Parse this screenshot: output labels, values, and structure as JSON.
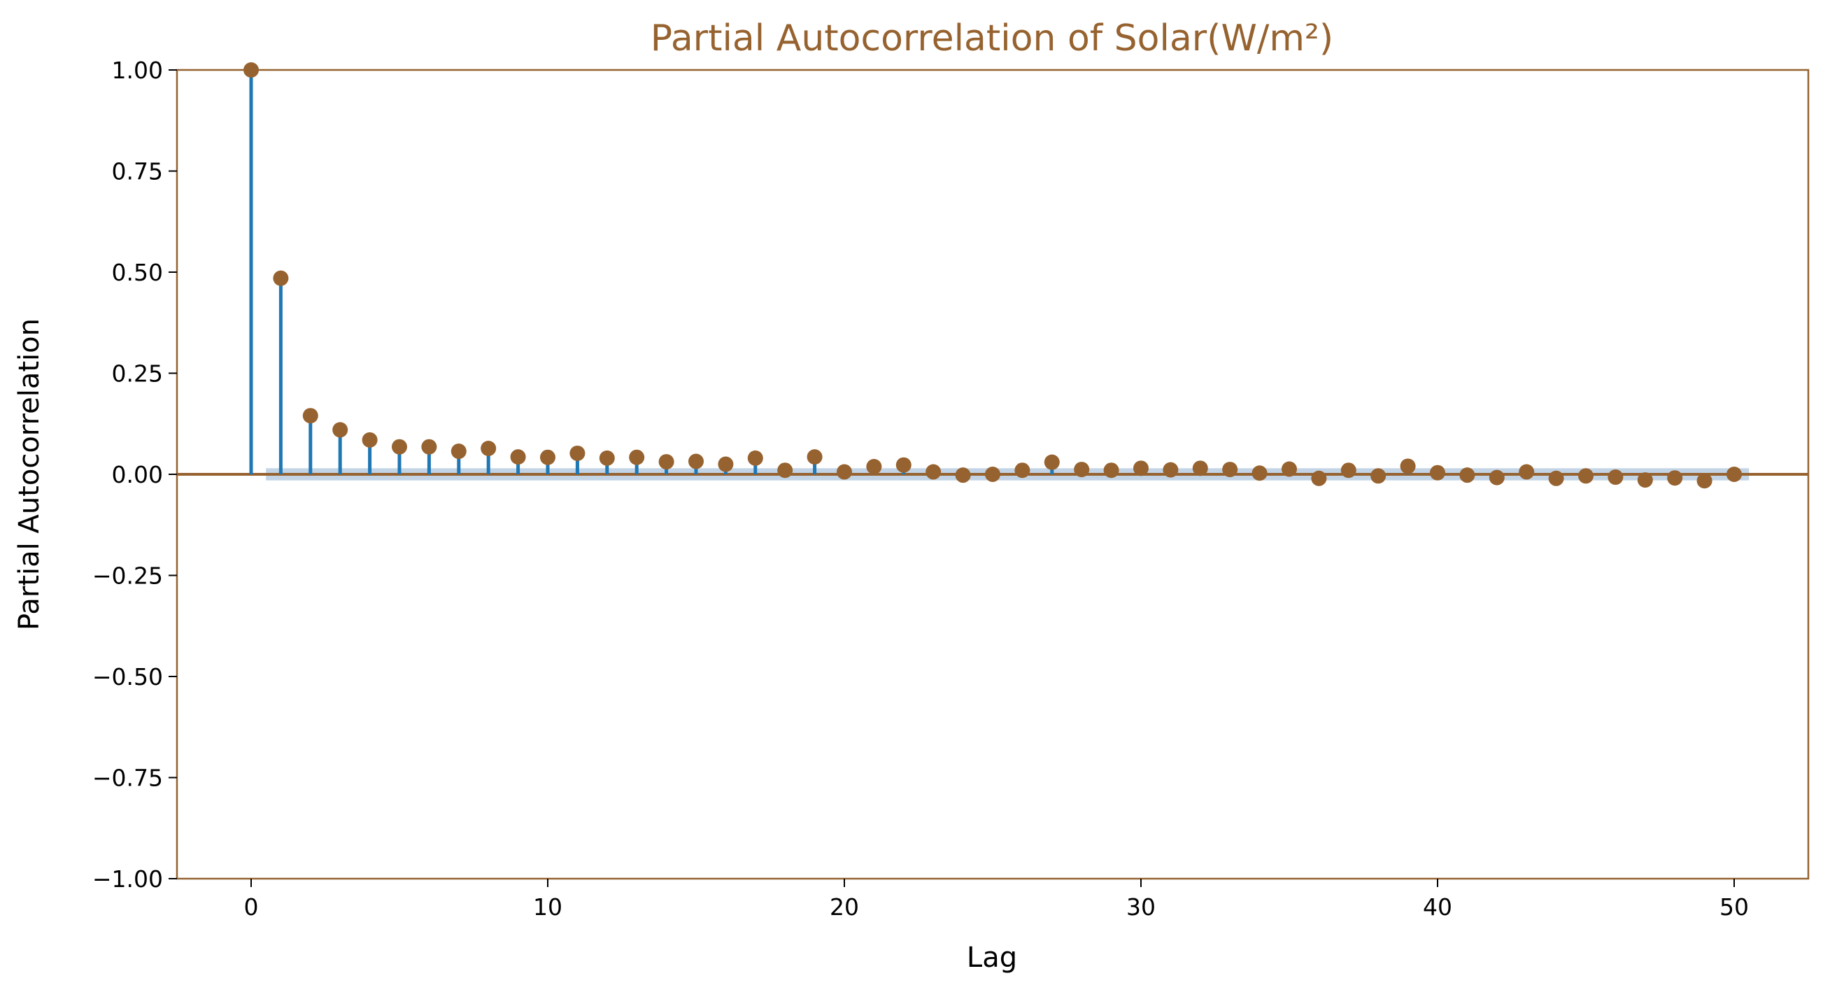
{
  "chart_data": {
    "type": "stem",
    "title": "Partial Autocorrelation of Solar(W/m²)",
    "xlabel": "Lag",
    "ylabel": "Partial Autocorrelation",
    "xlim": [
      -2.5,
      52.5
    ],
    "ylim": [
      -1.0,
      1.0
    ],
    "x_ticks": [
      0,
      10,
      20,
      30,
      40,
      50
    ],
    "y_ticks": [
      1.0,
      0.75,
      0.5,
      0.25,
      0.0,
      -0.25,
      -0.5,
      -0.75,
      -1.0
    ],
    "y_tick_labels": [
      "1.00",
      "0.75",
      "0.50",
      "0.25",
      "0.00",
      "−0.25",
      "−0.50",
      "−0.75",
      "−1.00"
    ],
    "x_tick_labels": [
      "0",
      "10",
      "20",
      "30",
      "40",
      "50"
    ],
    "grid": false,
    "confidence_band": {
      "lower": -0.015,
      "upper": 0.015,
      "x_range": [
        0.5,
        50.5
      ]
    },
    "lags": [
      0,
      1,
      2,
      3,
      4,
      5,
      6,
      7,
      8,
      9,
      10,
      11,
      12,
      13,
      14,
      15,
      16,
      17,
      18,
      19,
      20,
      21,
      22,
      23,
      24,
      25,
      26,
      27,
      28,
      29,
      30,
      31,
      32,
      33,
      34,
      35,
      36,
      37,
      38,
      39,
      40,
      41,
      42,
      43,
      44,
      45,
      46,
      47,
      48,
      49,
      50
    ],
    "values": [
      1.0,
      0.485,
      0.145,
      0.11,
      0.085,
      0.068,
      0.068,
      0.057,
      0.064,
      0.043,
      0.042,
      0.052,
      0.04,
      0.042,
      0.031,
      0.032,
      0.025,
      0.04,
      0.01,
      0.043,
      0.006,
      0.019,
      0.023,
      0.006,
      -0.002,
      0.0,
      0.01,
      0.03,
      0.012,
      0.01,
      0.015,
      0.011,
      0.015,
      0.012,
      0.003,
      0.013,
      -0.01,
      0.01,
      -0.004,
      0.02,
      0.004,
      -0.002,
      -0.008,
      0.006,
      -0.01,
      -0.004,
      -0.007,
      -0.014,
      -0.009,
      -0.016,
      0.0
    ],
    "colors": {
      "stem": "#1f77b4",
      "marker": "#96622f",
      "title": "#96622f",
      "frame": "#96622f",
      "band": "#b7cde0",
      "baseline": "#96622f"
    }
  }
}
